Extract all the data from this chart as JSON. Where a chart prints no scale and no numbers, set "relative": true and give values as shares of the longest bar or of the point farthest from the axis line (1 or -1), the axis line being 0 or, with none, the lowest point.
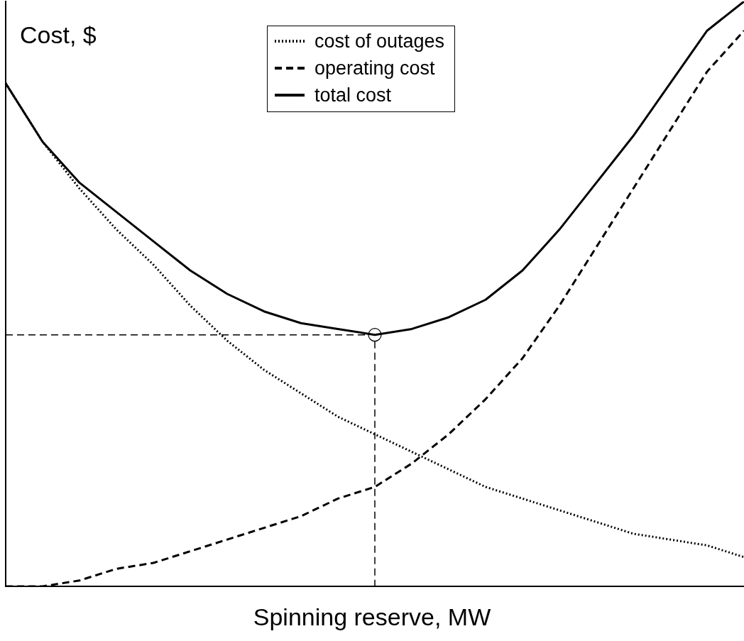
{
  "chart_data": {
    "type": "line",
    "relative": true,
    "ylabel": "Cost, $",
    "xlabel": "Spinning reserve, MW",
    "categories": [
      null,
      null,
      null,
      null,
      null,
      null,
      null,
      null,
      null,
      null,
      null,
      null,
      null,
      null,
      null,
      null,
      null,
      null,
      null,
      null,
      null
    ],
    "tick_labels": false,
    "grid": false,
    "legend": "top",
    "marker": "none",
    "series": [
      {
        "name": "cost of outages",
        "color": "#000000",
        "line_style": "dotted",
        "values": [
          0.86,
          0.76,
          0.68,
          0.61,
          0.55,
          0.48,
          0.42,
          0.37,
          0.33,
          0.29,
          0.26,
          0.23,
          0.2,
          0.17,
          0.15,
          0.13,
          0.11,
          0.09,
          0.08,
          0.07,
          0.05
        ]
      },
      {
        "name": "operating cost",
        "color": "#000000",
        "line_style": "dashed",
        "values": [
          0,
          0,
          0.01,
          0.03,
          0.04,
          0.06,
          0.08,
          0.1,
          0.12,
          0.15,
          0.17,
          0.21,
          0.26,
          0.32,
          0.39,
          0.48,
          0.58,
          0.68,
          0.78,
          0.88,
          0.95
        ]
      },
      {
        "name": "total cost",
        "color": "#000000",
        "line_style": "solid",
        "values": [
          0.86,
          0.76,
          0.69,
          0.64,
          0.59,
          0.54,
          0.5,
          0.47,
          0.45,
          0.44,
          0.43,
          0.44,
          0.46,
          0.49,
          0.54,
          0.61,
          0.69,
          0.77,
          0.86,
          0.95,
          1
        ]
      }
    ],
    "ref_lines": [
      {
        "axis": "y",
        "value": 0.43,
        "line_style": "dashed",
        "color": "#000000"
      }
    ]
  }
}
